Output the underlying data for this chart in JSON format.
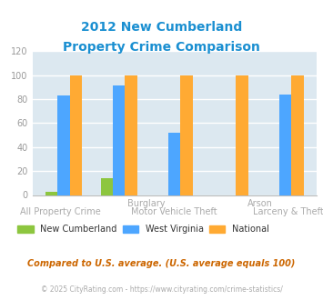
{
  "title_line1": "2012 New Cumberland",
  "title_line2": "Property Crime Comparison",
  "categories": [
    "All Property Crime",
    "Burglary",
    "Motor Vehicle Theft",
    "Arson",
    "Larceny & Theft"
  ],
  "new_cumberland": [
    3,
    14,
    0,
    0,
    0
  ],
  "west_virginia": [
    83,
    91,
    52,
    0,
    84
  ],
  "national": [
    100,
    100,
    100,
    100,
    100
  ],
  "colors": {
    "new_cumberland": "#8dc63f",
    "west_virginia": "#4da6ff",
    "national": "#ffaa33"
  },
  "ylim": [
    0,
    120
  ],
  "yticks": [
    0,
    20,
    40,
    60,
    80,
    100,
    120
  ],
  "bg_color": "#dce8f0",
  "title_color": "#1a8fd1",
  "label_color": "#aaaaaa",
  "footnote": "Compared to U.S. average. (U.S. average equals 100)",
  "copyright": "© 2025 CityRating.com - https://www.cityrating.com/crime-statistics/",
  "legend_labels": [
    "New Cumberland",
    "West Virginia",
    "National"
  ],
  "legend_text_color": "#333333",
  "footnote_color": "#cc6600",
  "copyright_color": "#aaaaaa"
}
